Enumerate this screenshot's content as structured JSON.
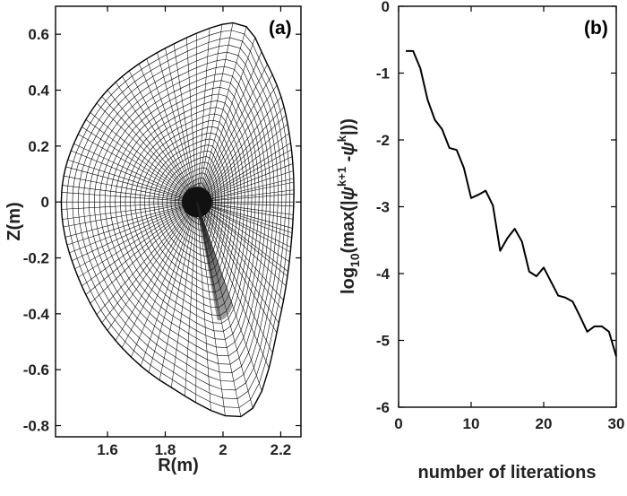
{
  "chart_data": [
    {
      "type": "mesh",
      "panel_label": "(a)",
      "xlabel": "R(m)",
      "ylabel": "Z(m)",
      "xlim": [
        1.42,
        2.27
      ],
      "ylim": [
        -0.84,
        0.7
      ],
      "xticks": [
        1.6,
        1.8,
        2,
        2.2
      ],
      "xtick_labels": [
        "1.6",
        "1.8",
        "2",
        "2.2"
      ],
      "yticks": [
        0.6,
        0.4,
        0.2,
        0,
        -0.2,
        -0.4,
        -0.6,
        -0.8
      ],
      "ytick_labels": [
        "0.6",
        "0.4",
        "0.2",
        "0",
        "-0.2",
        "-0.4",
        "-0.6",
        "-0.8"
      ],
      "mesh": {
        "magnetic_axis": [
          1.91,
          0.0
        ],
        "boundary_points": [
          {
            "r": 2.05,
            "z": 0.64
          },
          {
            "r": 1.8,
            "z": 0.55
          },
          {
            "r": 1.6,
            "z": 0.4
          },
          {
            "r": 1.48,
            "z": 0.2
          },
          {
            "r": 1.44,
            "z": 0.0
          },
          {
            "r": 1.48,
            "z": -0.22
          },
          {
            "r": 1.6,
            "z": -0.46
          },
          {
            "r": 1.8,
            "z": -0.65
          },
          {
            "r": 2.08,
            "z": -0.76
          },
          {
            "r": 2.2,
            "z": -0.4
          },
          {
            "r": 2.245,
            "z": 0.0
          },
          {
            "r": 2.22,
            "z": 0.3
          },
          {
            "r": 2.15,
            "z": 0.5
          }
        ],
        "radial_surfaces": 30,
        "poloidal_lines": 96
      },
      "grid": false
    },
    {
      "type": "line",
      "panel_label": "(b)",
      "xlabel": "number of literations",
      "ylabel_parts": {
        "main": "log",
        "sub": "10",
        "open": "(max(|",
        "psi": "ψ",
        "sup1": "k+1",
        "minus": " -",
        "sup2": "k",
        "close": "|))"
      },
      "xlim": [
        0,
        30
      ],
      "ylim": [
        -6,
        0
      ],
      "xticks": [
        0,
        10,
        20,
        30
      ],
      "xtick_labels": [
        "0",
        "10",
        "20",
        "30"
      ],
      "yticks": [
        0,
        -1,
        -2,
        -3,
        -4,
        -5,
        -6
      ],
      "ytick_labels": [
        "0",
        "-1",
        "-2",
        "-3",
        "-4",
        "-5",
        "-6"
      ],
      "series": [
        {
          "x": [
            1,
            2,
            3,
            4,
            5,
            6,
            7,
            8,
            9,
            10,
            11,
            12,
            13,
            14,
            15,
            16,
            17,
            18,
            19,
            20,
            21,
            22,
            23,
            24,
            25,
            26,
            27,
            28,
            29,
            30
          ],
          "y": [
            -0.67,
            -0.67,
            -0.93,
            -1.4,
            -1.7,
            -1.84,
            -2.12,
            -2.15,
            -2.42,
            -2.87,
            -2.82,
            -2.76,
            -2.98,
            -3.66,
            -3.47,
            -3.33,
            -3.52,
            -3.97,
            -4.04,
            -3.91,
            -4.12,
            -4.33,
            -4.36,
            -4.42,
            -4.64,
            -4.87,
            -4.79,
            -4.79,
            -4.87,
            -5.24
          ]
        }
      ],
      "grid": false
    }
  ]
}
